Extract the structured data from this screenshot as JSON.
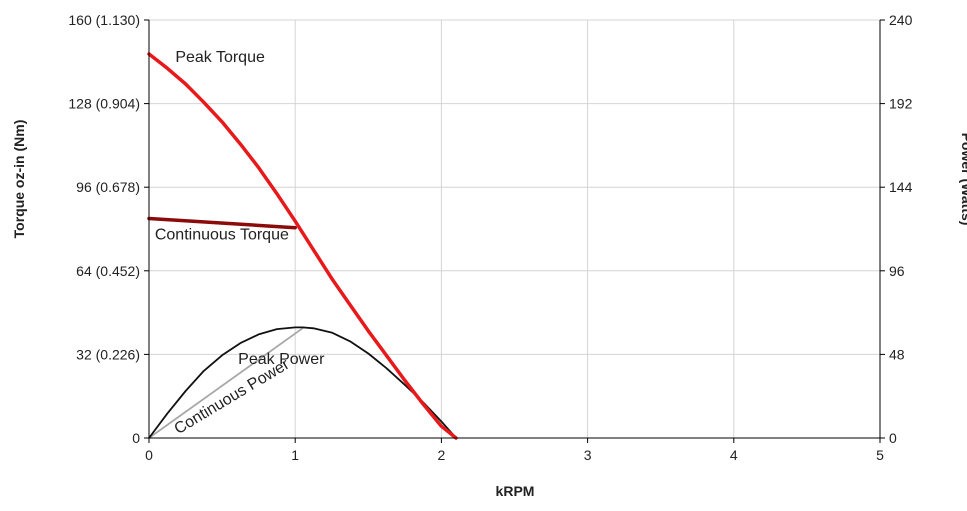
{
  "chart_data": {
    "type": "line",
    "title": "",
    "xlabel": "kRPM",
    "ylabel": "Torque oz-in (Nm)",
    "y2label": "Power (Watts)",
    "xlim": [
      0,
      5
    ],
    "ylim": [
      0,
      160
    ],
    "y2lim": [
      0,
      240
    ],
    "grid": true,
    "legend": "none",
    "x_ticks": [
      "0",
      "1",
      "2",
      "3",
      "4",
      "5"
    ],
    "y_ticks": [
      "0",
      "32 (0.226)",
      "64 (0.452)",
      "96 (0.678)",
      "128 (0.904)",
      "160 (1.130)"
    ],
    "y2_ticks": [
      "0",
      "48",
      "96",
      "144",
      "192",
      "240"
    ],
    "colors": {
      "peak_torque": "#e8191a",
      "continuous_torque": "#8b0a0a",
      "peak_power": "#111111",
      "continuous_power": "#a8a8a8",
      "grid": "#d4d4d4",
      "axis": "#000000"
    },
    "series": [
      {
        "key": "peak_torque",
        "axis": "left",
        "x": [
          0,
          0.125,
          0.25,
          0.375,
          0.5,
          0.625,
          0.75,
          0.875,
          1.0,
          1.125,
          1.25,
          1.375,
          1.5,
          1.625,
          1.75,
          1.875,
          2.0,
          2.1
        ],
        "y": [
          147,
          141.5,
          135.5,
          128.5,
          121,
          112.5,
          103.5,
          93.5,
          83,
          72,
          61,
          51,
          41,
          31.5,
          22,
          13,
          4.5,
          0
        ]
      },
      {
        "key": "continuous_torque",
        "axis": "left",
        "x": [
          0,
          1.0
        ],
        "y": [
          84,
          80.5
        ]
      },
      {
        "key": "peak_power",
        "axis": "right",
        "x": [
          0,
          0.125,
          0.25,
          0.375,
          0.5,
          0.625,
          0.75,
          0.875,
          1.0,
          1.05,
          1.125,
          1.25,
          1.375,
          1.5,
          1.625,
          1.75,
          1.875,
          2.0,
          2.1
        ],
        "y": [
          0,
          14,
          27,
          38.5,
          47.5,
          54.5,
          59.5,
          62.5,
          63.5,
          63.5,
          63,
          60.5,
          55.5,
          48.5,
          40,
          30.5,
          20.5,
          9.5,
          0
        ]
      },
      {
        "key": "continuous_power",
        "axis": "right",
        "x": [
          0,
          1.05
        ],
        "y": [
          0,
          63
        ]
      }
    ],
    "annotations": [
      {
        "key": "peak_torque",
        "text": "Peak Torque",
        "x": 0.18,
        "y": 144,
        "rotate": 0
      },
      {
        "key": "continuous_torque",
        "text": "Continuous Torque",
        "x": 0.04,
        "y": 76,
        "rotate": 0
      },
      {
        "key": "peak_power",
        "text": "Peak Power",
        "x": 0.61,
        "y": 42.5,
        "rotate": 0
      },
      {
        "key": "continuous_power",
        "text": "Continuous Power",
        "x": 0.2,
        "y": 2,
        "rotate": -31
      }
    ]
  }
}
